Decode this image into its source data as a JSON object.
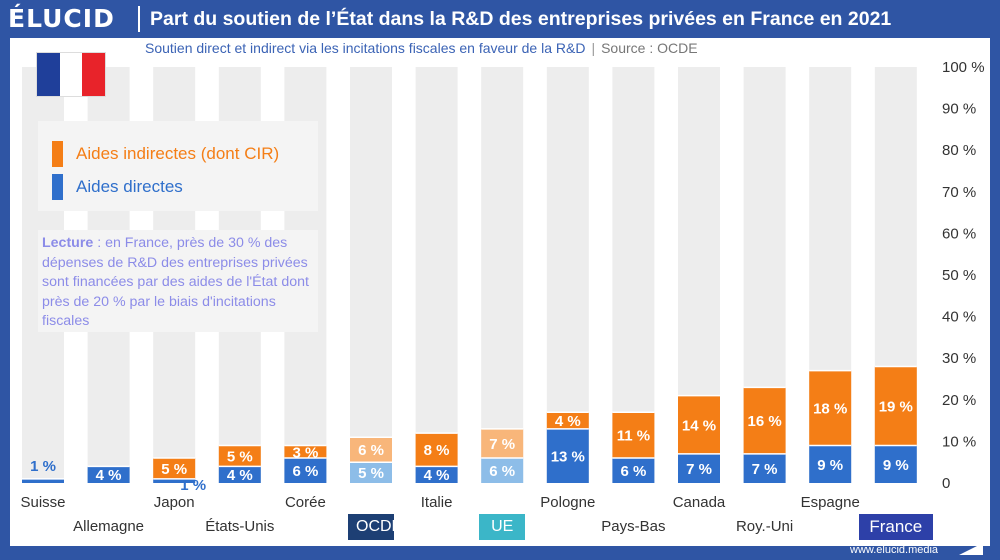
{
  "header": {
    "brand": "ÉLUCID",
    "title": "Part du soutien de l’État dans la R&D des entreprises privées en France en 2021"
  },
  "subtitle": {
    "text": "Soutien direct et indirect via les incitations fiscales en faveur de la R&D",
    "separator": "|",
    "source": "Source : OCDE"
  },
  "flag": {
    "colors": [
      "#1f3f9a",
      "#ffffff",
      "#e8232a"
    ]
  },
  "legend": {
    "items": [
      {
        "label": "Aides indirectes (dont CIR)",
        "color": "#f47e16"
      },
      {
        "label": "Aides directes",
        "color": "#2f6fcb"
      }
    ]
  },
  "lecture": {
    "label": "Lecture",
    "text": " : en France, près de 30 % des dépenses de R&D des entreprises privées sont financées par des aides de l'État dont près de 20 % par le biais d'incitations fiscales"
  },
  "colors": {
    "direct": "#2f6fcb",
    "indirect": "#f47e16",
    "direct_light": "#8dbde8",
    "indirect_light": "#f8b67a",
    "background_bar": "#ededed",
    "ocde_badge": "#1d3f74",
    "ue_badge": "#3bb6c8",
    "france_badge": "#2d40a8"
  },
  "chart_data": {
    "type": "bar",
    "stacked": true,
    "title": "Part du soutien de l’État dans la R&D des entreprises privées en France en 2021",
    "subtitle": "Soutien direct et indirect via les incitations fiscales en faveur de la R&D",
    "categories": [
      "Suisse",
      "Allemagne",
      "Japon",
      "États-Unis",
      "Corée",
      "OCDE",
      "Italie",
      "UE",
      "Pologne",
      "Pays-Bas",
      "Canada",
      "Roy.-Uni",
      "Espagne",
      "France"
    ],
    "series": [
      {
        "name": "Aides directes",
        "values": [
          1,
          4,
          1,
          4,
          6,
          5,
          4,
          6,
          13,
          6,
          7,
          7,
          9,
          9
        ],
        "labels": [
          "1 %",
          "4 %",
          "1 %",
          "4 %",
          "6 %",
          "5 %",
          "4 %",
          "6 %",
          "13 %",
          "6 %",
          "7 %",
          "7 %",
          "9 %",
          "9 %"
        ]
      },
      {
        "name": "Aides indirectes (dont CIR)",
        "values": [
          0,
          0,
          5,
          5,
          3,
          6,
          8,
          7,
          4,
          11,
          14,
          16,
          18,
          19
        ],
        "labels": [
          "",
          "",
          "5 %",
          "5 %",
          "3 %",
          "6 %",
          "8 %",
          "7 %",
          "4 %",
          "11 %",
          "14 %",
          "16 %",
          "18 %",
          "19 %"
        ]
      }
    ],
    "highlight_light": [
      "OCDE",
      "UE"
    ],
    "badges": {
      "OCDE": "ocde",
      "UE": "ue",
      "France": "france"
    },
    "ylim": [
      0,
      100
    ],
    "yticks": [
      0,
      10,
      20,
      30,
      40,
      50,
      60,
      70,
      80,
      90,
      100
    ],
    "ytick_labels": [
      "0",
      "10 %",
      "20 %",
      "30 %",
      "40 %",
      "50 %",
      "60 %",
      "70 %",
      "80 %",
      "90 %",
      "100 %"
    ],
    "y_axis_side": "right",
    "xlabel": "",
    "ylabel": ""
  },
  "footer": {
    "url": "www.elucid.media"
  }
}
